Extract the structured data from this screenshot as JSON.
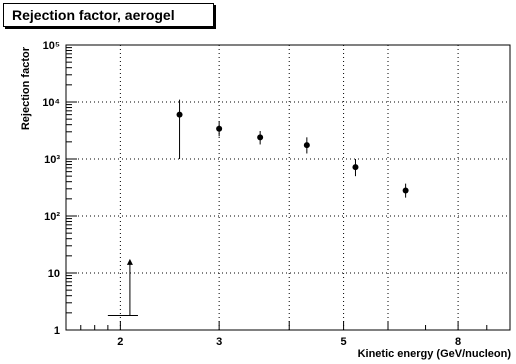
{
  "chart_data": {
    "type": "scatter",
    "title": "Rejection factor, aerogel",
    "xlabel": "Kinetic energy (GeV/nucleon)",
    "ylabel": "Rejection factor",
    "x_scale": "log",
    "y_scale": "log",
    "xlim": [
      1.6,
      9.9
    ],
    "ylim": [
      1,
      100000
    ],
    "grid": true,
    "x_ticks": [
      {
        "value": 2,
        "label": "2"
      },
      {
        "value": 3,
        "label": "3"
      },
      {
        "value": 4,
        "label": ""
      },
      {
        "value": 5,
        "label": "5"
      },
      {
        "value": 6,
        "label": ""
      },
      {
        "value": 8,
        "label": "8"
      }
    ],
    "y_ticks": [
      {
        "value": 1,
        "label": "1"
      },
      {
        "value": 10,
        "label": "10"
      },
      {
        "value": 100,
        "label": "10²"
      },
      {
        "value": 1000,
        "label": "10³"
      },
      {
        "value": 10000,
        "label": "10⁴"
      },
      {
        "value": 100000,
        "label": "10⁵"
      }
    ],
    "points": [
      {
        "x": 2.55,
        "y": 6000,
        "y_low": 1000,
        "y_high": 11000
      },
      {
        "x": 3.0,
        "y": 3400,
        "y_low": 2500,
        "y_high": 4600
      },
      {
        "x": 3.55,
        "y": 2400,
        "y_low": 1800,
        "y_high": 3100
      },
      {
        "x": 4.3,
        "y": 1750,
        "y_low": 1250,
        "y_high": 2400
      },
      {
        "x": 5.25,
        "y": 720,
        "y_low": 500,
        "y_high": 1000
      },
      {
        "x": 6.45,
        "y": 280,
        "y_low": 210,
        "y_high": 370
      }
    ],
    "lower_limit": {
      "x_low": 1.9,
      "x_high": 2.15,
      "x_mark": 2.08,
      "y": 1.8,
      "y_arrow": 17
    },
    "colors": {
      "axis": "#000000",
      "grid": "#000000",
      "marker": "#000000"
    }
  }
}
